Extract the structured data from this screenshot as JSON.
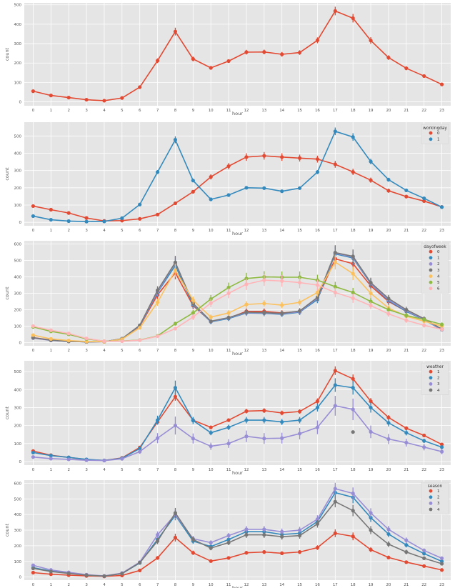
{
  "colors": {
    "panel_bg": "#e5e5e5",
    "grid": "#ffffff",
    "tick_text": "#555555",
    "label_text": "#555555"
  },
  "chart_data": [
    {
      "type": "line",
      "title": "",
      "xlabel": "hour",
      "ylabel": "count",
      "ylim": [
        -20,
        510
      ],
      "yticks": [
        0,
        100,
        200,
        300,
        400,
        500
      ],
      "categories": [
        0,
        1,
        2,
        3,
        4,
        5,
        6,
        7,
        8,
        9,
        10,
        11,
        12,
        13,
        14,
        15,
        16,
        17,
        18,
        19,
        20,
        21,
        22,
        23
      ],
      "legend_title": "",
      "series": [
        {
          "name": "count",
          "color": "#e24a33",
          "values": [
            55,
            33,
            22,
            11,
            6,
            20,
            76,
            212,
            362,
            221,
            175,
            210,
            256,
            257,
            245,
            254,
            317,
            468,
            431,
            316,
            228,
            173,
            133,
            90
          ],
          "err": [
            4,
            3,
            3,
            2,
            2,
            3,
            6,
            12,
            20,
            12,
            8,
            9,
            12,
            12,
            12,
            12,
            15,
            22,
            22,
            17,
            12,
            10,
            8,
            6
          ]
        }
      ]
    },
    {
      "type": "line",
      "title": "",
      "xlabel": "hour",
      "ylabel": "count",
      "ylim": [
        -20,
        580
      ],
      "yticks": [
        0,
        100,
        200,
        300,
        400,
        500
      ],
      "categories": [
        0,
        1,
        2,
        3,
        4,
        5,
        6,
        7,
        8,
        9,
        10,
        11,
        12,
        13,
        14,
        15,
        16,
        17,
        18,
        19,
        20,
        21,
        22,
        23
      ],
      "legend_title": "workingday",
      "legend_labels": [
        "0",
        "1"
      ],
      "series": [
        {
          "name": "0",
          "color": "#e24a33",
          "values": [
            94,
            73,
            54,
            25,
            8,
            10,
            20,
            45,
            110,
            177,
            263,
            325,
            378,
            385,
            378,
            372,
            366,
            336,
            292,
            244,
            183,
            149,
            123,
            89
          ],
          "err": [
            6,
            5,
            4,
            3,
            2,
            2,
            3,
            5,
            8,
            10,
            15,
            18,
            22,
            22,
            22,
            20,
            20,
            20,
            18,
            15,
            12,
            10,
            8,
            6
          ]
        },
        {
          "name": "1",
          "color": "#348abd",
          "values": [
            36,
            15,
            7,
            4,
            5,
            24,
            103,
            291,
            478,
            242,
            133,
            158,
            200,
            198,
            180,
            198,
            291,
            527,
            494,
            352,
            247,
            185,
            139,
            88
          ],
          "err": [
            3,
            2,
            1,
            1,
            1,
            2,
            6,
            12,
            20,
            10,
            7,
            7,
            9,
            9,
            8,
            9,
            12,
            22,
            22,
            16,
            11,
            9,
            7,
            5
          ]
        }
      ]
    },
    {
      "type": "line",
      "title": "",
      "xlabel": "hour",
      "ylabel": "count",
      "ylim": [
        -20,
        620
      ],
      "yticks": [
        0,
        100,
        200,
        300,
        400,
        500,
        600
      ],
      "categories": [
        0,
        1,
        2,
        3,
        4,
        5,
        6,
        7,
        8,
        9,
        10,
        11,
        12,
        13,
        14,
        15,
        16,
        17,
        18,
        19,
        20,
        21,
        22,
        23
      ],
      "legend_title": "dayofweek",
      "legend_labels": [
        "0",
        "1",
        "2",
        "3",
        "4",
        "5",
        "6"
      ],
      "series": [
        {
          "name": "0",
          "color": "#e24a33",
          "values": [
            30,
            15,
            8,
            4,
            5,
            22,
            100,
            290,
            425,
            225,
            128,
            148,
            190,
            190,
            180,
            190,
            265,
            510,
            480,
            345,
            250,
            190,
            140,
            80
          ],
          "err": [
            5,
            4,
            3,
            2,
            2,
            4,
            10,
            25,
            40,
            22,
            15,
            15,
            18,
            18,
            17,
            18,
            22,
            45,
            42,
            30,
            22,
            18,
            14,
            10
          ]
        },
        {
          "name": "1",
          "color": "#348abd",
          "values": [
            28,
            14,
            7,
            4,
            5,
            23,
            102,
            305,
            470,
            230,
            126,
            146,
            180,
            178,
            172,
            185,
            262,
            540,
            515,
            358,
            255,
            190,
            138,
            78
          ],
          "err": [
            5,
            4,
            3,
            2,
            2,
            4,
            10,
            25,
            40,
            22,
            15,
            15,
            18,
            18,
            17,
            18,
            22,
            45,
            42,
            30,
            22,
            18,
            14,
            10
          ]
        },
        {
          "name": "2",
          "color": "#988ed5",
          "values": [
            27,
            13,
            7,
            4,
            5,
            23,
            103,
            310,
            485,
            235,
            128,
            150,
            182,
            180,
            175,
            188,
            270,
            545,
            520,
            360,
            260,
            195,
            140,
            80
          ],
          "err": [
            5,
            4,
            3,
            2,
            2,
            4,
            10,
            25,
            40,
            22,
            15,
            15,
            18,
            18,
            17,
            18,
            22,
            45,
            42,
            30,
            22,
            18,
            14,
            10
          ]
        },
        {
          "name": "3",
          "color": "#777777",
          "values": [
            29,
            14,
            7,
            4,
            5,
            23,
            105,
            318,
            488,
            238,
            130,
            152,
            185,
            182,
            178,
            192,
            275,
            548,
            525,
            365,
            268,
            200,
            145,
            82
          ],
          "err": [
            5,
            4,
            3,
            2,
            2,
            4,
            10,
            25,
            40,
            22,
            15,
            15,
            18,
            18,
            17,
            18,
            22,
            45,
            42,
            30,
            22,
            18,
            14,
            10
          ]
        },
        {
          "name": "4",
          "color": "#fbc15e",
          "values": [
            45,
            22,
            12,
            6,
            5,
            20,
            90,
            245,
            440,
            258,
            155,
            180,
            232,
            238,
            228,
            245,
            305,
            490,
            420,
            300,
            210,
            160,
            130,
            100
          ],
          "err": [
            6,
            5,
            4,
            3,
            2,
            4,
            10,
            22,
            40,
            22,
            16,
            17,
            20,
            20,
            19,
            20,
            25,
            45,
            40,
            28,
            20,
            16,
            14,
            12
          ]
        },
        {
          "name": "5",
          "color": "#8eba42",
          "values": [
            95,
            68,
            50,
            22,
            8,
            9,
            15,
            40,
            115,
            180,
            265,
            335,
            390,
            400,
            398,
            398,
            380,
            340,
            305,
            250,
            200,
            165,
            140,
            110
          ],
          "err": [
            8,
            7,
            6,
            4,
            2,
            2,
            3,
            6,
            12,
            18,
            25,
            30,
            35,
            35,
            35,
            35,
            33,
            30,
            28,
            22,
            18,
            15,
            14,
            12
          ]
        },
        {
          "name": "6",
          "color": "#ffb5b8",
          "values": [
            100,
            75,
            55,
            25,
            8,
            8,
            14,
            38,
            85,
            155,
            240,
            300,
            355,
            380,
            375,
            365,
            350,
            305,
            270,
            225,
            175,
            135,
            105,
            80
          ],
          "err": [
            8,
            7,
            6,
            4,
            2,
            2,
            3,
            6,
            12,
            18,
            25,
            30,
            35,
            35,
            35,
            35,
            33,
            30,
            28,
            22,
            18,
            15,
            14,
            12
          ]
        }
      ]
    },
    {
      "type": "line",
      "title": "",
      "xlabel": "hour",
      "ylabel": "count",
      "ylim": [
        -20,
        560
      ],
      "yticks": [
        0,
        100,
        200,
        300,
        400,
        500
      ],
      "categories": [
        0,
        1,
        2,
        3,
        4,
        5,
        6,
        7,
        8,
        9,
        10,
        11,
        12,
        13,
        14,
        15,
        16,
        17,
        18,
        19,
        20,
        21,
        22,
        23
      ],
      "legend_title": "weather",
      "legend_labels": [
        "1",
        "2",
        "3",
        "4"
      ],
      "series": [
        {
          "name": "1",
          "color": "#e24a33",
          "values": [
            58,
            35,
            23,
            11,
            6,
            20,
            78,
            220,
            360,
            230,
            190,
            230,
            280,
            283,
            270,
            278,
            335,
            505,
            460,
            335,
            245,
            185,
            145,
            95
          ],
          "err": [
            4,
            3,
            3,
            2,
            2,
            3,
            6,
            14,
            22,
            13,
            9,
            10,
            13,
            13,
            13,
            13,
            16,
            24,
            24,
            18,
            13,
            10,
            9,
            6
          ]
        },
        {
          "name": "2",
          "color": "#348abd",
          "values": [
            50,
            33,
            23,
            12,
            6,
            18,
            72,
            230,
            410,
            228,
            160,
            190,
            230,
            230,
            220,
            230,
            300,
            425,
            410,
            300,
            215,
            160,
            115,
            80
          ],
          "err": [
            6,
            5,
            4,
            3,
            2,
            3,
            10,
            25,
            40,
            20,
            14,
            15,
            18,
            18,
            17,
            18,
            22,
            38,
            38,
            28,
            20,
            15,
            12,
            10
          ]
        },
        {
          "name": "3",
          "color": "#988ed5",
          "values": [
            25,
            16,
            12,
            7,
            5,
            15,
            55,
            130,
            200,
            128,
            85,
            100,
            140,
            128,
            130,
            155,
            190,
            310,
            290,
            165,
            125,
            105,
            80,
            55
          ],
          "err": [
            5,
            4,
            4,
            3,
            2,
            4,
            12,
            28,
            50,
            28,
            20,
            24,
            32,
            30,
            30,
            32,
            38,
            55,
            60,
            35,
            28,
            22,
            18,
            14
          ]
        },
        {
          "name": "4",
          "color": "#777777",
          "point": {
            "x": 18,
            "y": 164
          }
        }
      ]
    },
    {
      "type": "line",
      "title": "",
      "xlabel": "hour",
      "ylabel": "count",
      "ylim": [
        -20,
        620
      ],
      "yticks": [
        0,
        100,
        200,
        300,
        400,
        500,
        600
      ],
      "categories": [
        0,
        1,
        2,
        3,
        4,
        5,
        6,
        7,
        8,
        9,
        10,
        11,
        12,
        13,
        14,
        15,
        16,
        17,
        18,
        19,
        20,
        21,
        22,
        23
      ],
      "legend_title": "season",
      "legend_labels": [
        "1",
        "2",
        "3",
        "4"
      ],
      "series": [
        {
          "name": "1",
          "color": "#e24a33",
          "values": [
            28,
            18,
            12,
            7,
            4,
            10,
            42,
            122,
            252,
            155,
            102,
            122,
            155,
            160,
            152,
            160,
            188,
            280,
            260,
            175,
            125,
            95,
            70,
            45
          ],
          "err": [
            3,
            3,
            2,
            2,
            1,
            2,
            5,
            12,
            25,
            14,
            8,
            9,
            12,
            12,
            12,
            12,
            15,
            25,
            25,
            16,
            11,
            9,
            7,
            5
          ]
        },
        {
          "name": "2",
          "color": "#348abd",
          "values": [
            60,
            38,
            25,
            13,
            6,
            22,
            90,
            240,
            395,
            230,
            195,
            240,
            290,
            290,
            272,
            280,
            355,
            540,
            510,
            380,
            275,
            205,
            150,
            100
          ],
          "err": [
            5,
            4,
            3,
            2,
            2,
            3,
            8,
            20,
            32,
            18,
            14,
            16,
            20,
            20,
            19,
            20,
            24,
            38,
            38,
            28,
            20,
            16,
            12,
            8
          ]
        },
        {
          "name": "3",
          "color": "#988ed5",
          "values": [
            75,
            45,
            30,
            15,
            7,
            25,
            95,
            270,
            400,
            245,
            220,
            265,
            305,
            305,
            290,
            300,
            370,
            565,
            535,
            410,
            305,
            235,
            170,
            120
          ],
          "err": [
            6,
            5,
            4,
            3,
            2,
            3,
            8,
            22,
            32,
            18,
            15,
            17,
            21,
            21,
            20,
            21,
            25,
            38,
            38,
            30,
            22,
            18,
            13,
            9
          ]
        },
        {
          "name": "4",
          "color": "#777777",
          "values": [
            55,
            35,
            23,
            12,
            6,
            22,
            92,
            230,
            410,
            240,
            185,
            220,
            270,
            270,
            258,
            265,
            340,
            482,
            425,
            300,
            210,
            160,
            120,
            85
          ],
          "err": [
            5,
            4,
            3,
            2,
            2,
            3,
            8,
            20,
            32,
            18,
            14,
            16,
            20,
            20,
            19,
            20,
            24,
            36,
            36,
            26,
            19,
            15,
            11,
            8
          ]
        }
      ]
    }
  ]
}
